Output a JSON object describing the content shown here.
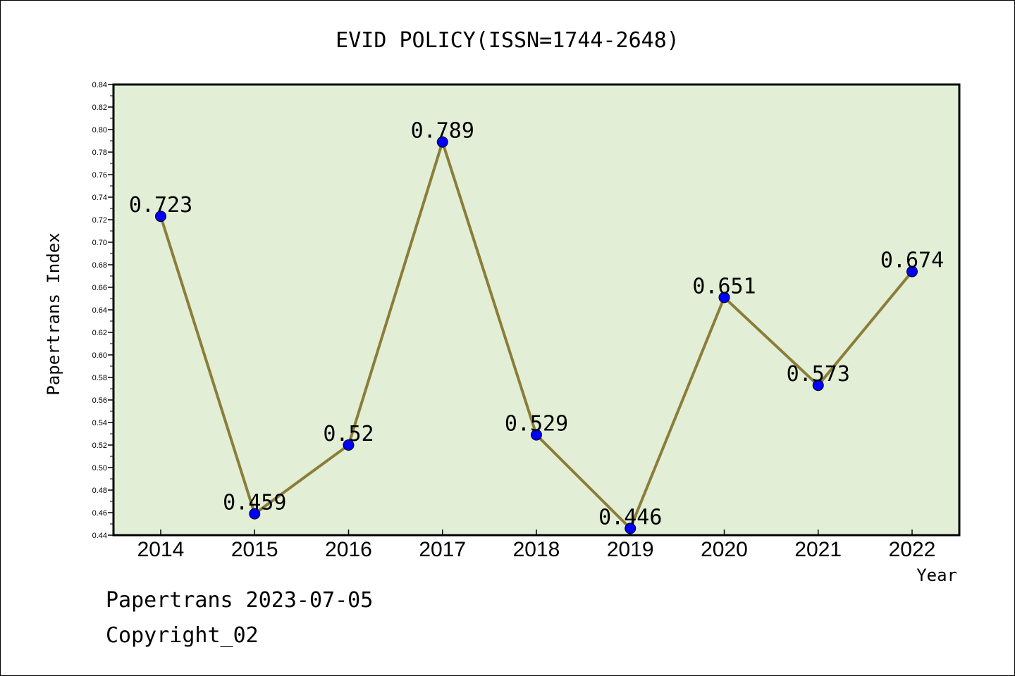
{
  "chart_data": {
    "type": "line",
    "title": "EVID POLICY(ISSN=1744-2648)",
    "xlabel": "Year",
    "ylabel": "Papertrans Index",
    "categories": [
      "2014",
      "2015",
      "2016",
      "2017",
      "2018",
      "2019",
      "2020",
      "2021",
      "2022"
    ],
    "series": [
      {
        "values": [
          0.723,
          0.459,
          0.52,
          0.789,
          0.529,
          0.446,
          0.651,
          0.573,
          0.674
        ],
        "labels": [
          "0.723",
          "0.459",
          "0.52",
          "0.789",
          "0.529",
          "0.446",
          "0.651",
          "0.573",
          "0.674"
        ]
      }
    ],
    "ylim": [
      0.44,
      0.84
    ],
    "yticks": [
      "0.44",
      "0.46",
      "0.48",
      "0.50",
      "0.52",
      "0.54",
      "0.56",
      "0.58",
      "0.60",
      "0.62",
      "0.64",
      "0.66",
      "0.68",
      "0.70",
      "0.72",
      "0.74",
      "0.76",
      "0.78",
      "0.80",
      "0.82",
      "0.84"
    ],
    "grid": false,
    "colors": {
      "plot_background": "#e2efd6",
      "line": "#8b7d3a",
      "marker": "#0000ff"
    }
  },
  "footer": {
    "line1": "Papertrans 2023-07-05",
    "line2": "Copyright_02"
  }
}
